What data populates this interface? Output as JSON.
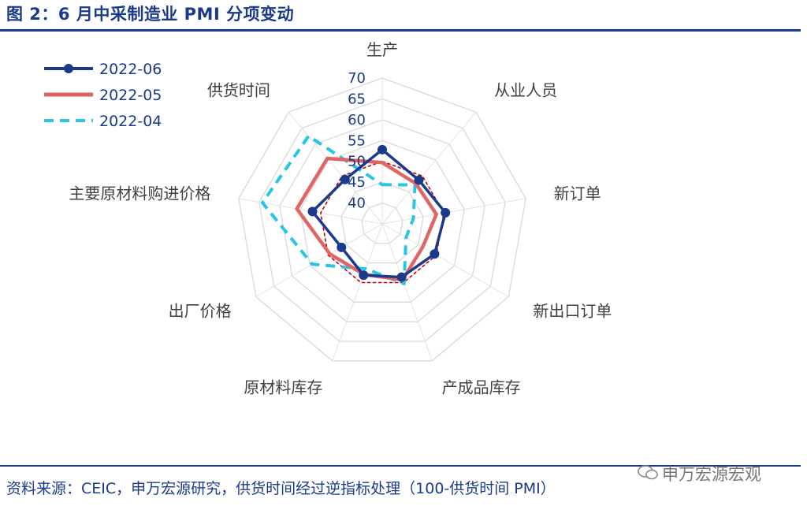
{
  "figure": {
    "title": "图 2：6 月中采制造业 PMI 分项变动",
    "source": "资料来源：CEIC，申万宏源研究，供货时间经过逆指标处理（100-供货时间 PMI）",
    "brand": "申万宏源宏观"
  },
  "chart_data": {
    "type": "radar",
    "categories": [
      "生产",
      "从业人员",
      "新订单",
      "新出口订单",
      "产成品库存",
      "原材料库存",
      "出厂价格",
      "主要原材料购进价格",
      "供货时间"
    ],
    "rlim": [
      35,
      70
    ],
    "ticks": [
      40,
      45,
      50,
      55,
      60,
      65,
      70
    ],
    "tick_labels": [
      "40",
      "45",
      "50",
      "55",
      "60",
      "65",
      "70"
    ],
    "legend_position": "top-left",
    "series": [
      {
        "name": "2022-06",
        "color": "#1b3a8c",
        "style": "solid-markers",
        "values": [
          52.8,
          48.7,
          50.4,
          49.5,
          48.6,
          48.1,
          46.3,
          52.0,
          48.9
        ]
      },
      {
        "name": "2022-05",
        "color": "#e06666",
        "style": "solid",
        "values": [
          49.7,
          47.6,
          48.2,
          46.2,
          49.3,
          47.9,
          49.5,
          55.8,
          55.5
        ]
      },
      {
        "name": "2022-04",
        "color": "#29c5e6",
        "style": "dashed",
        "values": [
          44.4,
          47.2,
          42.6,
          41.6,
          50.3,
          46.5,
          54.4,
          64.2,
          62.5
        ]
      }
    ],
    "reference": {
      "value": 50,
      "color": "#c00000",
      "style": "dashed"
    },
    "grid": true
  }
}
